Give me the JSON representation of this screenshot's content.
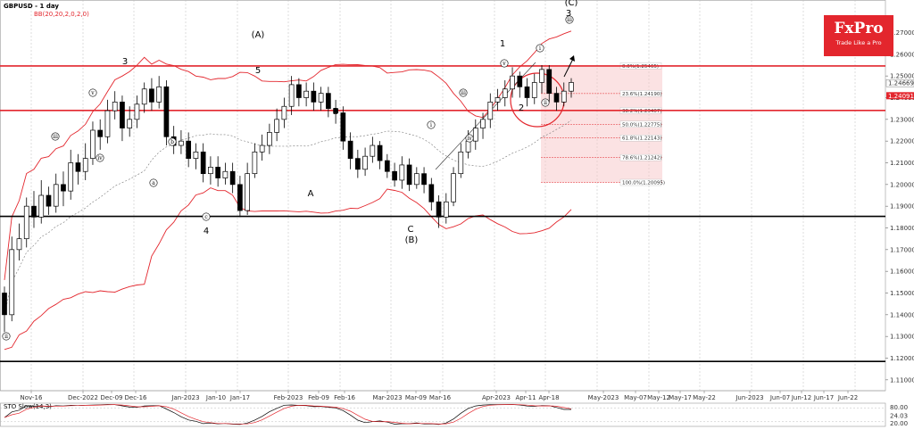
{
  "header": {
    "symbol_line": "GBPUSD - 1 day",
    "indicator_line": "BB(20,20,2,0,2,0)"
  },
  "logo": {
    "brand": "FxPro",
    "tagline": "Trade Like a Pro",
    "color": "#e3262d"
  },
  "oscillator": {
    "label": "STO Slow(14,3)",
    "levels": [
      "80.00",
      "24.03",
      "20.00"
    ]
  },
  "price_labels": {
    "last": "1.24669",
    "bid": "1.24091"
  },
  "chart_data": {
    "type": "candlestick",
    "ylim": [
      1.105,
      1.285
    ],
    "yticks": [
      1.27,
      1.26,
      1.25,
      1.24,
      1.23,
      1.22,
      1.21,
      1.2,
      1.19,
      1.18,
      1.17,
      1.16,
      1.15,
      1.14,
      1.13,
      1.12,
      1.11
    ],
    "date_labels": [
      "Nov-16",
      "Dec-2022",
      "Dec-09",
      "Dec-16",
      "Jan-2023",
      "Jan-10",
      "Jan-17",
      "Feb-2023",
      "Feb-09",
      "Feb-16",
      "Mar-2023",
      "Mar-09",
      "Mar-16",
      "Apr-2023",
      "Apr-11",
      "Apr-18",
      "May-2023",
      "May-07",
      "May-12",
      "May-17",
      "May-22",
      "Jun-2023",
      "Jun-07",
      "Jun-12",
      "Jun-17",
      "Jun-22"
    ],
    "horizontal_lines": [
      {
        "value": 1.2546,
        "color": "#e3262d"
      },
      {
        "value": 1.2341,
        "color": "#e3262d"
      },
      {
        "value": 1.1853,
        "color": "#000000"
      },
      {
        "value": 1.1185,
        "color": "#000000"
      }
    ],
    "fibonacci": [
      {
        "level": "0.0%",
        "value": 1.25465,
        "text": "0.0%(1.25465)"
      },
      {
        "level": "23.6%",
        "value": 1.2419,
        "text": "23.6%(1.24190)"
      },
      {
        "level": "38.2%",
        "value": 1.23407,
        "text": "38.2%(1.23407)"
      },
      {
        "level": "50.0%",
        "value": 1.22775,
        "text": "50.0%(1.22775)"
      },
      {
        "level": "61.8%",
        "value": 1.22143,
        "text": "61.8%(1.22143)"
      },
      {
        "level": "78.6%",
        "value": 1.21242,
        "text": "78.6%(1.21242)"
      },
      {
        "level": "100.0%",
        "value": 1.20095,
        "text": "100.0%(1.20095)"
      }
    ],
    "wave_labels": [
      "3",
      "(A)",
      "5",
      "4",
      "A",
      "B",
      "C",
      "(B)",
      "1",
      "2",
      "(C)",
      "3",
      "ii",
      "iii",
      "iv",
      "v",
      "a",
      "b",
      "c",
      "i",
      "iii",
      "iv",
      "v",
      "i",
      "ii",
      "iii"
    ],
    "candles": [
      [
        1.15,
        1.14,
        1.153,
        1.132
      ],
      [
        1.14,
        1.17,
        1.176,
        1.137
      ],
      [
        1.17,
        1.175,
        1.182,
        1.165
      ],
      [
        1.175,
        1.19,
        1.194,
        1.171
      ],
      [
        1.19,
        1.185,
        1.197,
        1.18
      ],
      [
        1.185,
        1.195,
        1.202,
        1.182
      ],
      [
        1.195,
        1.19,
        1.199,
        1.186
      ],
      [
        1.19,
        1.2,
        1.205,
        1.187
      ],
      [
        1.2,
        1.197,
        1.206,
        1.19
      ],
      [
        1.197,
        1.21,
        1.216,
        1.193
      ],
      [
        1.21,
        1.206,
        1.214,
        1.2
      ],
      [
        1.206,
        1.212,
        1.219,
        1.202
      ],
      [
        1.212,
        1.225,
        1.229,
        1.209
      ],
      [
        1.225,
        1.222,
        1.23,
        1.216
      ],
      [
        1.222,
        1.234,
        1.239,
        1.219
      ],
      [
        1.234,
        1.238,
        1.243,
        1.23
      ],
      [
        1.238,
        1.226,
        1.241,
        1.22
      ],
      [
        1.226,
        1.23,
        1.236,
        1.222
      ],
      [
        1.23,
        1.237,
        1.241,
        1.226
      ],
      [
        1.237,
        1.244,
        1.247,
        1.233
      ],
      [
        1.244,
        1.238,
        1.249,
        1.234
      ],
      [
        1.238,
        1.245,
        1.25,
        1.235
      ],
      [
        1.245,
        1.222,
        1.248,
        1.218
      ],
      [
        1.222,
        1.218,
        1.227,
        1.214
      ],
      [
        1.218,
        1.22,
        1.225,
        1.214
      ],
      [
        1.22,
        1.212,
        1.224,
        1.208
      ],
      [
        1.212,
        1.215,
        1.219,
        1.207
      ],
      [
        1.215,
        1.205,
        1.219,
        1.201
      ],
      [
        1.205,
        1.208,
        1.213,
        1.2
      ],
      [
        1.208,
        1.203,
        1.213,
        1.199
      ],
      [
        1.203,
        1.206,
        1.21,
        1.2
      ],
      [
        1.206,
        1.2,
        1.21,
        1.196
      ],
      [
        1.2,
        1.188,
        1.204,
        1.185
      ],
      [
        1.188,
        1.205,
        1.21,
        1.186
      ],
      [
        1.205,
        1.215,
        1.219,
        1.203
      ],
      [
        1.215,
        1.218,
        1.223,
        1.211
      ],
      [
        1.218,
        1.224,
        1.228,
        1.214
      ],
      [
        1.224,
        1.23,
        1.235,
        1.22
      ],
      [
        1.23,
        1.236,
        1.24,
        1.226
      ],
      [
        1.236,
        1.246,
        1.25,
        1.232
      ],
      [
        1.246,
        1.24,
        1.249,
        1.236
      ],
      [
        1.24,
        1.243,
        1.247,
        1.236
      ],
      [
        1.243,
        1.238,
        1.247,
        1.234
      ],
      [
        1.238,
        1.242,
        1.245,
        1.234
      ],
      [
        1.242,
        1.235,
        1.245,
        1.231
      ],
      [
        1.235,
        1.233,
        1.239,
        1.228
      ],
      [
        1.233,
        1.22,
        1.236,
        1.216
      ],
      [
        1.22,
        1.212,
        1.224,
        1.207
      ],
      [
        1.212,
        1.207,
        1.216,
        1.203
      ],
      [
        1.207,
        1.213,
        1.217,
        1.204
      ],
      [
        1.213,
        1.218,
        1.222,
        1.21
      ],
      [
        1.218,
        1.211,
        1.22,
        1.207
      ],
      [
        1.211,
        1.206,
        1.214,
        1.203
      ],
      [
        1.206,
        1.202,
        1.21,
        1.199
      ],
      [
        1.202,
        1.209,
        1.213,
        1.198
      ],
      [
        1.209,
        1.2,
        1.212,
        1.197
      ],
      [
        1.2,
        1.205,
        1.208,
        1.198
      ],
      [
        1.205,
        1.2,
        1.208,
        1.196
      ],
      [
        1.2,
        1.192,
        1.203,
        1.188
      ],
      [
        1.192,
        1.185,
        1.195,
        1.18
      ],
      [
        1.185,
        1.192,
        1.196,
        1.182
      ],
      [
        1.192,
        1.205,
        1.208,
        1.19
      ],
      [
        1.205,
        1.215,
        1.219,
        1.203
      ],
      [
        1.215,
        1.22,
        1.225,
        1.212
      ],
      [
        1.22,
        1.226,
        1.23,
        1.216
      ],
      [
        1.226,
        1.23,
        1.233,
        1.221
      ],
      [
        1.23,
        1.238,
        1.242,
        1.226
      ],
      [
        1.238,
        1.24,
        1.244,
        1.234
      ],
      [
        1.24,
        1.244,
        1.248,
        1.236
      ],
      [
        1.244,
        1.25,
        1.254,
        1.24
      ],
      [
        1.25,
        1.245,
        1.252,
        1.24
      ],
      [
        1.245,
        1.24,
        1.249,
        1.236
      ],
      [
        1.24,
        1.247,
        1.251,
        1.237
      ],
      [
        1.247,
        1.253,
        1.255,
        1.242
      ],
      [
        1.253,
        1.242,
        1.255,
        1.238
      ],
      [
        1.242,
        1.238,
        1.245,
        1.234
      ],
      [
        1.238,
        1.243,
        1.247,
        1.236
      ],
      [
        1.243,
        1.247,
        1.249,
        1.24
      ]
    ]
  }
}
